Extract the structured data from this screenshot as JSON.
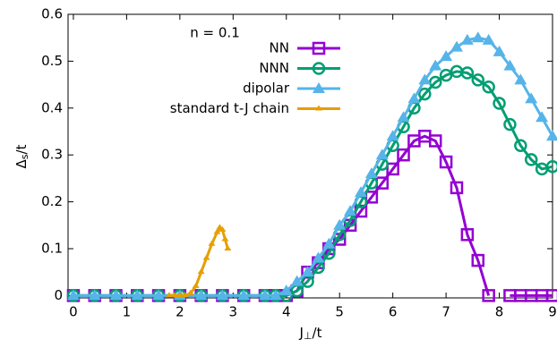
{
  "chart_data": {
    "type": "line",
    "xlabel": {
      "main": "J",
      "sub": "⊥",
      "rest": "/t"
    },
    "ylabel": {
      "main": "Δ",
      "sub": "s",
      "rest": "/t"
    },
    "legend_title": "n = 0.1",
    "xlim": [
      -0.1,
      9
    ],
    "ylim": [
      -0.005,
      0.6
    ],
    "xticks": [
      0,
      1,
      2,
      3,
      4,
      5,
      6,
      7,
      8,
      9
    ],
    "yticks": [
      0,
      0.1,
      0.2,
      0.3,
      0.4,
      0.5,
      0.6
    ],
    "x": [
      0,
      0.4,
      0.8,
      1.2,
      1.6,
      2.0,
      2.4,
      2.8,
      3.2,
      3.6,
      3.8,
      4.0,
      4.2,
      4.4,
      4.6,
      4.8,
      5.0,
      5.2,
      5.4,
      5.6,
      5.8,
      6.0,
      6.2,
      6.4,
      6.6,
      6.8,
      7.0,
      7.2,
      7.4,
      7.6,
      7.8,
      8.0,
      8.2,
      8.4,
      8.6,
      8.8,
      9.0
    ],
    "series": [
      {
        "name": "NN",
        "color": "#9400d3",
        "marker": "square",
        "values": [
          0,
          0,
          0,
          0,
          0,
          0,
          0,
          0,
          0,
          0,
          0,
          0,
          0.01,
          0.05,
          0.07,
          0.1,
          0.12,
          0.15,
          0.18,
          0.21,
          0.24,
          0.27,
          0.3,
          0.33,
          0.34,
          0.33,
          0.285,
          0.23,
          0.13,
          0.075,
          0,
          null,
          0,
          0,
          0,
          0,
          0
        ]
      },
      {
        "name": "NNN",
        "color": "#009e73",
        "marker": "circle",
        "values": [
          0,
          0,
          0,
          0,
          0,
          0,
          0,
          0,
          0,
          0,
          0,
          0,
          0.01,
          0.03,
          0.06,
          0.09,
          0.13,
          0.16,
          0.2,
          0.24,
          0.28,
          0.32,
          0.36,
          0.4,
          0.43,
          0.455,
          0.47,
          0.478,
          0.475,
          0.46,
          0.445,
          0.41,
          0.365,
          0.32,
          0.29,
          0.27,
          0.275
        ]
      },
      {
        "name": "dipolar",
        "color": "#56b4e9",
        "marker": "triangle",
        "values": [
          0,
          0,
          0,
          0,
          0,
          0,
          0,
          0,
          0,
          0,
          0,
          0.01,
          0.03,
          0.05,
          0.08,
          0.11,
          0.15,
          0.18,
          0.22,
          0.26,
          0.3,
          0.34,
          0.38,
          0.42,
          0.46,
          0.49,
          0.51,
          0.53,
          0.545,
          0.55,
          0.545,
          0.52,
          0.49,
          0.46,
          0.42,
          0.38,
          0.34
        ]
      },
      {
        "name": "standard t-J chain",
        "color": "#e69f00",
        "marker": "tick",
        "x": [
          1.8,
          1.9,
          2.0,
          2.1,
          2.2,
          2.3,
          2.4,
          2.5,
          2.6,
          2.7,
          2.75,
          2.8,
          2.85,
          2.9
        ],
        "values": [
          0,
          0,
          0,
          0,
          0.005,
          0.02,
          0.05,
          0.08,
          0.11,
          0.135,
          0.145,
          0.14,
          0.12,
          0.1
        ]
      }
    ]
  }
}
